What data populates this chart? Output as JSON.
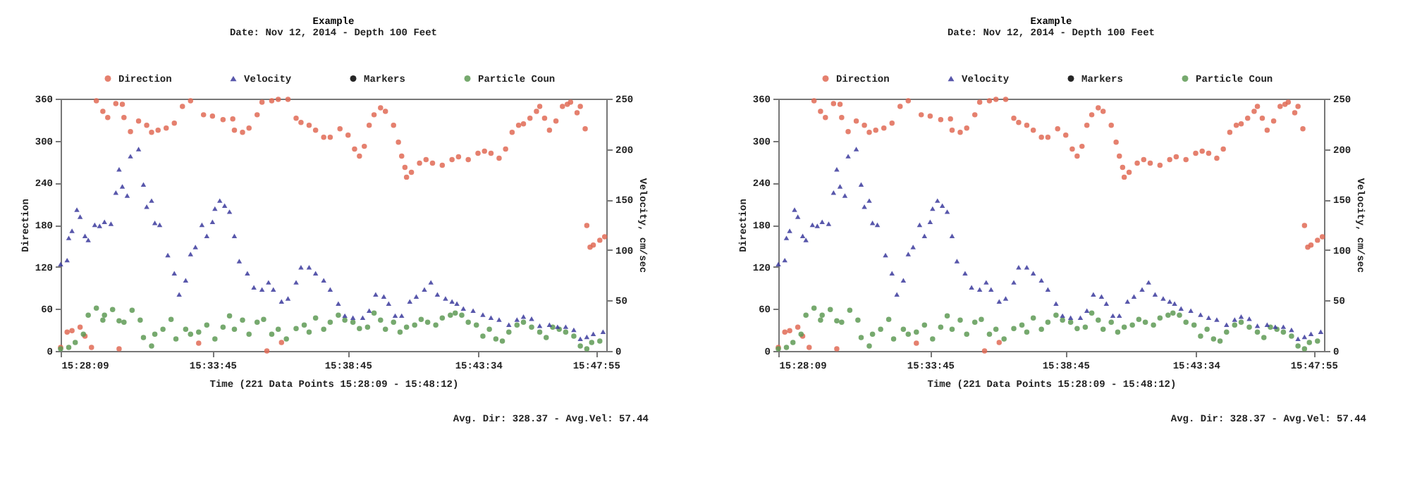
{
  "chart_data": [
    {
      "type": "scatter",
      "title": "Example",
      "subtitle": "Date: Nov 12, 2014 - Depth 100 Feet",
      "xlabel": "Time (221 Data Points 15:28:09 - 15:48:12)",
      "ylabel": "Direction",
      "y2label": "Velocity, cm/sec",
      "annotations": [
        "Avg. Dir: 328.37 - Avg.Vel: 57.44"
      ],
      "legend": "top",
      "xlim": [
        15.469,
        15.805
      ],
      "xticks": [
        {
          "value": 15.4692,
          "label": "15:28:09"
        },
        {
          "value": 15.5625,
          "label": "15:33:45"
        },
        {
          "value": 15.6458,
          "label": "15:38:45"
        },
        {
          "value": 15.7261,
          "label": "15:43:34"
        },
        {
          "value": 15.7986,
          "label": "15:47:55"
        }
      ],
      "ylim": [
        0,
        360
      ],
      "yticks": [
        0,
        60,
        120,
        180,
        240,
        300,
        360
      ],
      "y2lim": [
        0,
        250
      ],
      "y2ticks": [
        0,
        50,
        100,
        150,
        200,
        250
      ],
      "series": [
        {
          "name": "Direction",
          "color": "#e06a55",
          "marker": "circle",
          "x": [
            15.469,
            15.473,
            15.476,
            15.481,
            15.484,
            15.488,
            15.491,
            15.495,
            15.498,
            15.503,
            15.505,
            15.507,
            15.508,
            15.512,
            15.517,
            15.522,
            15.525,
            15.529,
            15.534,
            15.539,
            15.544,
            15.549,
            15.554,
            15.557,
            15.5625,
            15.569,
            15.575,
            15.576,
            15.581,
            15.585,
            15.59,
            15.593,
            15.596,
            15.599,
            15.603,
            15.605,
            15.609,
            15.614,
            15.617,
            15.622,
            15.626,
            15.631,
            15.635,
            15.641,
            15.646,
            15.65,
            15.653,
            15.656,
            15.659,
            15.662,
            15.666,
            15.669,
            15.674,
            15.677,
            15.679,
            15.681,
            15.682,
            15.685,
            15.69,
            15.694,
            15.698,
            15.704,
            15.71,
            15.714,
            15.72,
            15.726,
            15.73,
            15.734,
            15.739,
            15.743,
            15.747,
            15.751,
            15.754,
            15.758,
            15.762,
            15.764,
            15.767,
            15.77,
            15.774,
            15.778,
            15.781,
            15.783,
            15.787,
            15.789,
            15.792,
            15.793,
            15.795,
            15.797,
            15.801,
            15.804
          ],
          "values": [
            5,
            27,
            29,
            34,
            21,
            5,
            357,
            342,
            333,
            353,
            3,
            352,
            333,
            313,
            328,
            322,
            312,
            315,
            318,
            325,
            349,
            357,
            11,
            337,
            335,
            330,
            331,
            315,
            312,
            318,
            337,
            355,
            0,
            357,
            359,
            12,
            359,
            332,
            326,
            322,
            315,
            305,
            305,
            317,
            308,
            288,
            278,
            292,
            322,
            337,
            347,
            342,
            322,
            298,
            278,
            262,
            248,
            255,
            268,
            273,
            268,
            265,
            273,
            277,
            273,
            282,
            285,
            282,
            275,
            288,
            312,
            322,
            324,
            332,
            342,
            349,
            332,
            315,
            328,
            349,
            352,
            355,
            340,
            349,
            317,
            179,
            148,
            151,
            158,
            163
          ]
        },
        {
          "name": "Velocity",
          "color": "#3b3a9c",
          "marker": "triangle",
          "axis": "y2",
          "x": [
            15.469,
            15.473,
            15.474,
            15.476,
            15.479,
            15.481,
            15.484,
            15.486,
            15.49,
            15.493,
            15.496,
            15.5,
            15.503,
            15.505,
            15.507,
            15.51,
            15.512,
            15.517,
            15.52,
            15.522,
            15.525,
            15.527,
            15.53,
            15.535,
            15.539,
            15.542,
            15.546,
            15.549,
            15.552,
            15.556,
            15.559,
            15.5625,
            15.564,
            15.567,
            15.57,
            15.573,
            15.576,
            15.579,
            15.584,
            15.588,
            15.593,
            15.597,
            15.6,
            15.605,
            15.609,
            15.614,
            15.617,
            15.622,
            15.626,
            15.631,
            15.635,
            15.64,
            15.644,
            15.649,
            15.655,
            15.659,
            15.663,
            15.668,
            15.671,
            15.675,
            15.679,
            15.684,
            15.688,
            15.693,
            15.697,
            15.701,
            15.706,
            15.71,
            15.713,
            15.717,
            15.723,
            15.729,
            15.734,
            15.739,
            15.745,
            15.75,
            15.754,
            15.759,
            15.764,
            15.77,
            15.775,
            15.78,
            15.785,
            15.789,
            15.793,
            15.797,
            15.803
          ],
          "values": [
            86,
            90,
            112,
            119,
            140,
            133,
            114,
            110,
            125,
            124,
            128,
            126,
            157,
            180,
            163,
            154,
            193,
            200,
            165,
            143,
            149,
            127,
            125,
            95,
            77,
            56,
            70,
            96,
            103,
            125,
            114,
            128,
            141,
            149,
            144,
            138,
            114,
            89,
            77,
            63,
            61,
            68,
            61,
            49,
            52,
            68,
            83,
            83,
            77,
            70,
            61,
            47,
            35,
            33,
            33,
            40,
            56,
            54,
            47,
            35,
            35,
            49,
            54,
            61,
            68,
            56,
            52,
            49,
            47,
            42,
            40,
            36,
            33,
            31,
            26,
            31,
            34,
            32,
            25,
            26,
            24,
            24,
            21,
            12,
            14,
            17,
            19
          ]
        },
        {
          "name": "Markers",
          "color": "#000000",
          "marker": "circle"
        },
        {
          "name": "Particle Coun",
          "color": "#5e9a55",
          "marker": "circle",
          "x": [
            15.469,
            15.474,
            15.478,
            15.483,
            15.486,
            15.491,
            15.495,
            15.496,
            15.501,
            15.505,
            15.508,
            15.513,
            15.518,
            15.52,
            15.525,
            15.527,
            15.532,
            15.537,
            15.54,
            15.546,
            15.549,
            15.554,
            15.559,
            15.564,
            15.569,
            15.573,
            15.576,
            15.581,
            15.585,
            15.59,
            15.594,
            15.599,
            15.603,
            15.608,
            15.614,
            15.619,
            15.622,
            15.626,
            15.631,
            15.635,
            15.64,
            15.644,
            15.649,
            15.653,
            15.658,
            15.662,
            15.666,
            15.669,
            15.674,
            15.678,
            15.682,
            15.687,
            15.691,
            15.695,
            15.7,
            15.704,
            15.709,
            15.712,
            15.716,
            15.72,
            15.725,
            15.729,
            15.733,
            15.737,
            15.741,
            15.745,
            15.75,
            15.754,
            15.759,
            15.764,
            15.768,
            15.772,
            15.776,
            15.78,
            15.785,
            15.789,
            15.793,
            15.796,
            15.801
          ],
          "values": [
            3,
            5,
            12,
            24,
            51,
            61,
            44,
            51,
            59,
            43,
            41,
            58,
            44,
            19,
            7,
            24,
            31,
            45,
            17,
            31,
            24,
            27,
            37,
            17,
            34,
            50,
            31,
            44,
            24,
            41,
            45,
            24,
            31,
            17,
            32,
            37,
            27,
            47,
            31,
            41,
            51,
            44,
            41,
            32,
            34,
            54,
            44,
            31,
            41,
            27,
            34,
            37,
            45,
            41,
            37,
            47,
            51,
            54,
            51,
            41,
            37,
            21,
            31,
            17,
            14,
            27,
            37,
            41,
            34,
            27,
            19,
            34,
            31,
            27,
            21,
            7,
            3,
            12,
            14
          ]
        }
      ]
    },
    {
      "type": "scatter",
      "title": "Example",
      "subtitle": "Date: Nov 12, 2014 - Depth 100 Feet",
      "xlabel": "Time (221 Data Points 15:28:09 - 15:48:12)",
      "ylabel": "Direction",
      "y2label": "Velocity, cm/sec",
      "annotations": [
        "Avg. Dir: 328.37 - Avg.Vel: 57.44"
      ],
      "legend": "top",
      "xlim": [
        15.469,
        15.805
      ],
      "xticks": [
        {
          "value": 15.4692,
          "label": "15:28:09"
        },
        {
          "value": 15.5625,
          "label": "15:33:45"
        },
        {
          "value": 15.6458,
          "label": "15:38:45"
        },
        {
          "value": 15.7261,
          "label": "15:43:34"
        },
        {
          "value": 15.7986,
          "label": "15:47:55"
        }
      ],
      "ylim": [
        0,
        360
      ],
      "yticks": [
        0,
        60,
        120,
        180,
        240,
        300,
        360
      ],
      "y2lim": [
        0,
        250
      ],
      "y2ticks": [
        0,
        50,
        100,
        150,
        200,
        250
      ],
      "series": [
        {
          "name": "Direction",
          "color": "#e06a55",
          "marker": "circle",
          "x": [
            15.469,
            15.473,
            15.476,
            15.481,
            15.484,
            15.488,
            15.491,
            15.495,
            15.498,
            15.503,
            15.505,
            15.507,
            15.508,
            15.512,
            15.517,
            15.522,
            15.525,
            15.529,
            15.534,
            15.539,
            15.544,
            15.549,
            15.554,
            15.557,
            15.5625,
            15.569,
            15.575,
            15.576,
            15.581,
            15.585,
            15.59,
            15.593,
            15.596,
            15.599,
            15.603,
            15.605,
            15.609,
            15.614,
            15.617,
            15.622,
            15.626,
            15.631,
            15.635,
            15.641,
            15.646,
            15.65,
            15.653,
            15.656,
            15.659,
            15.662,
            15.666,
            15.669,
            15.674,
            15.677,
            15.679,
            15.681,
            15.682,
            15.685,
            15.69,
            15.694,
            15.698,
            15.704,
            15.71,
            15.714,
            15.72,
            15.726,
            15.73,
            15.734,
            15.739,
            15.743,
            15.747,
            15.751,
            15.754,
            15.758,
            15.762,
            15.764,
            15.767,
            15.77,
            15.774,
            15.778,
            15.781,
            15.783,
            15.787,
            15.789,
            15.792,
            15.793,
            15.795,
            15.797,
            15.801,
            15.804
          ],
          "values": [
            5,
            27,
            29,
            34,
            21,
            5,
            357,
            342,
            333,
            353,
            3,
            352,
            333,
            313,
            328,
            322,
            312,
            315,
            318,
            325,
            349,
            357,
            11,
            337,
            335,
            330,
            331,
            315,
            312,
            318,
            337,
            355,
            0,
            357,
            359,
            12,
            359,
            332,
            326,
            322,
            315,
            305,
            305,
            317,
            308,
            288,
            278,
            292,
            322,
            337,
            347,
            342,
            322,
            298,
            278,
            262,
            248,
            255,
            268,
            273,
            268,
            265,
            273,
            277,
            273,
            282,
            285,
            282,
            275,
            288,
            312,
            322,
            324,
            332,
            342,
            349,
            332,
            315,
            328,
            349,
            352,
            355,
            340,
            349,
            317,
            179,
            148,
            151,
            158,
            163
          ]
        },
        {
          "name": "Velocity",
          "color": "#3b3a9c",
          "marker": "triangle",
          "axis": "y2",
          "x": [
            15.469,
            15.473,
            15.474,
            15.476,
            15.479,
            15.481,
            15.484,
            15.486,
            15.49,
            15.493,
            15.496,
            15.5,
            15.503,
            15.505,
            15.507,
            15.51,
            15.512,
            15.517,
            15.52,
            15.522,
            15.525,
            15.527,
            15.53,
            15.535,
            15.539,
            15.542,
            15.546,
            15.549,
            15.552,
            15.556,
            15.559,
            15.5625,
            15.564,
            15.567,
            15.57,
            15.573,
            15.576,
            15.579,
            15.584,
            15.588,
            15.593,
            15.597,
            15.6,
            15.605,
            15.609,
            15.614,
            15.617,
            15.622,
            15.626,
            15.631,
            15.635,
            15.64,
            15.644,
            15.649,
            15.655,
            15.659,
            15.663,
            15.668,
            15.671,
            15.675,
            15.679,
            15.684,
            15.688,
            15.693,
            15.697,
            15.701,
            15.706,
            15.71,
            15.713,
            15.717,
            15.723,
            15.729,
            15.734,
            15.739,
            15.745,
            15.75,
            15.754,
            15.759,
            15.764,
            15.77,
            15.775,
            15.78,
            15.785,
            15.789,
            15.793,
            15.797,
            15.803
          ],
          "values": [
            86,
            90,
            112,
            119,
            140,
            133,
            114,
            110,
            125,
            124,
            128,
            126,
            157,
            180,
            163,
            154,
            193,
            200,
            165,
            143,
            149,
            127,
            125,
            95,
            77,
            56,
            70,
            96,
            103,
            125,
            114,
            128,
            141,
            149,
            144,
            138,
            114,
            89,
            77,
            63,
            61,
            68,
            61,
            49,
            52,
            68,
            83,
            83,
            77,
            70,
            61,
            47,
            35,
            33,
            33,
            40,
            56,
            54,
            47,
            35,
            35,
            49,
            54,
            61,
            68,
            56,
            52,
            49,
            47,
            42,
            40,
            36,
            33,
            31,
            26,
            31,
            34,
            32,
            25,
            26,
            24,
            24,
            21,
            12,
            14,
            17,
            19
          ]
        },
        {
          "name": "Markers",
          "color": "#000000",
          "marker": "circle"
        },
        {
          "name": "Particle Coun",
          "color": "#5e9a55",
          "marker": "circle",
          "x": [
            15.469,
            15.474,
            15.478,
            15.483,
            15.486,
            15.491,
            15.495,
            15.496,
            15.501,
            15.505,
            15.508,
            15.513,
            15.518,
            15.52,
            15.525,
            15.527,
            15.532,
            15.537,
            15.54,
            15.546,
            15.549,
            15.554,
            15.559,
            15.564,
            15.569,
            15.573,
            15.576,
            15.581,
            15.585,
            15.59,
            15.594,
            15.599,
            15.603,
            15.608,
            15.614,
            15.619,
            15.622,
            15.626,
            15.631,
            15.635,
            15.64,
            15.644,
            15.649,
            15.653,
            15.658,
            15.662,
            15.666,
            15.669,
            15.674,
            15.678,
            15.682,
            15.687,
            15.691,
            15.695,
            15.7,
            15.704,
            15.709,
            15.712,
            15.716,
            15.72,
            15.725,
            15.729,
            15.733,
            15.737,
            15.741,
            15.745,
            15.75,
            15.754,
            15.759,
            15.764,
            15.768,
            15.772,
            15.776,
            15.78,
            15.785,
            15.789,
            15.793,
            15.796,
            15.801
          ],
          "values": [
            3,
            5,
            12,
            24,
            51,
            61,
            44,
            51,
            59,
            43,
            41,
            58,
            44,
            19,
            7,
            24,
            31,
            45,
            17,
            31,
            24,
            27,
            37,
            17,
            34,
            50,
            31,
            44,
            24,
            41,
            45,
            24,
            31,
            17,
            32,
            37,
            27,
            47,
            31,
            41,
            51,
            44,
            41,
            32,
            34,
            54,
            44,
            31,
            41,
            27,
            34,
            37,
            45,
            41,
            37,
            47,
            51,
            54,
            51,
            41,
            37,
            21,
            31,
            17,
            14,
            27,
            37,
            41,
            34,
            27,
            19,
            34,
            31,
            27,
            21,
            7,
            3,
            12,
            14
          ]
        }
      ]
    }
  ]
}
